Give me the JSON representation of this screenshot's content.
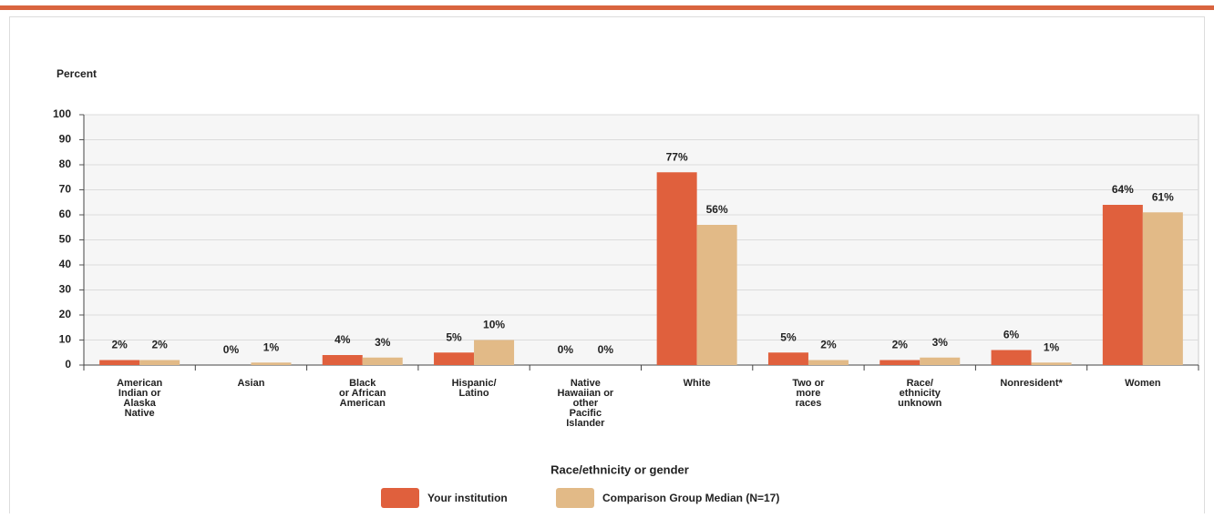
{
  "chart_data": {
    "type": "bar",
    "y_label": "Percent",
    "x_label": "Race/ethnicity or gender",
    "categories": [
      "American\nIndian or\nAlaska\nNative",
      "Asian",
      "Black\nor African\nAmerican",
      "Hispanic/\nLatino",
      "Native\nHawaiian or\nother\nPacific\nIslander",
      "White",
      "Two or\nmore\nraces",
      "Race/\nethnicity\nunknown",
      "Nonresident*",
      "Women"
    ],
    "series": [
      {
        "name": "Your institution",
        "color": "#e0603d",
        "values": [
          2,
          0,
          4,
          5,
          0,
          77,
          5,
          2,
          6,
          64
        ],
        "value_labels": [
          "2%",
          "0%",
          "4%",
          "5%",
          "0%",
          "77%",
          "5%",
          "2%",
          "6%",
          "64%"
        ]
      },
      {
        "name": "Comparison Group Median (N=17)",
        "color": "#e2ba87",
        "values": [
          2,
          1,
          3,
          10,
          0,
          56,
          2,
          3,
          1,
          61
        ],
        "value_labels": [
          "2%",
          "1%",
          "3%",
          "10%",
          "0%",
          "56%",
          "2%",
          "3%",
          "1%",
          "61%"
        ]
      }
    ],
    "ylim": [
      0,
      100
    ],
    "yticks": [
      0,
      10,
      20,
      30,
      40,
      50,
      60,
      70,
      80,
      90,
      100
    ],
    "grid": true,
    "legend": "bottom"
  }
}
